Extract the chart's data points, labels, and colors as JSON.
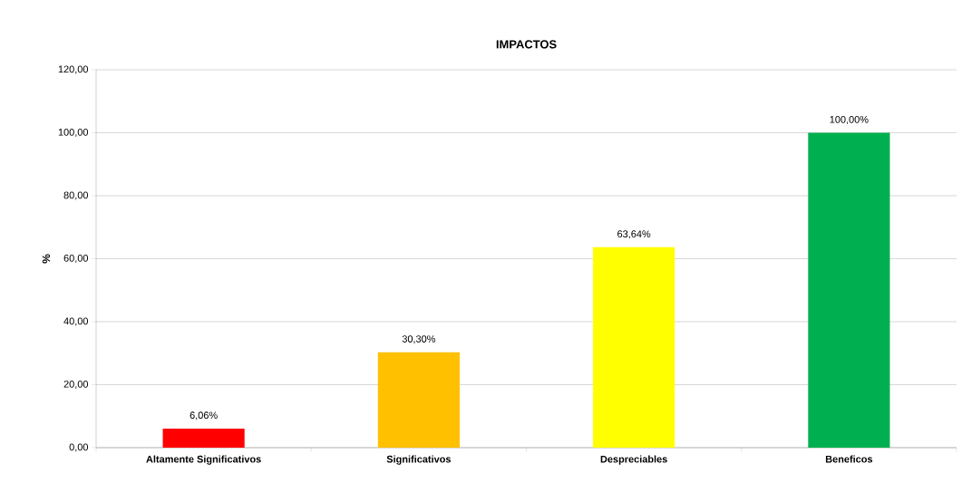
{
  "chart_data": {
    "type": "bar",
    "title": "IMPACTOS",
    "ylabel": "%",
    "categories": [
      "Altamente Significativos",
      "Significativos",
      "Despreciables",
      "Beneficos"
    ],
    "values": [
      6.06,
      30.3,
      63.64,
      100.0
    ],
    "colors": [
      "#ff0000",
      "#ffc000",
      "#ffff00",
      "#00b050"
    ],
    "value_labels": [
      "6,06%",
      "30,30%",
      "63,64%",
      "100,00%"
    ],
    "ylim": [
      0,
      120
    ],
    "yticks": [
      {
        "value": 0,
        "label": "0,00"
      },
      {
        "value": 20,
        "label": "20,00"
      },
      {
        "value": 40,
        "label": "40,00"
      },
      {
        "value": 60,
        "label": "60,00"
      },
      {
        "value": 80,
        "label": "80,00"
      },
      {
        "value": 100,
        "label": "100,00"
      },
      {
        "value": 120,
        "label": "120,00"
      }
    ],
    "grid": "y"
  }
}
